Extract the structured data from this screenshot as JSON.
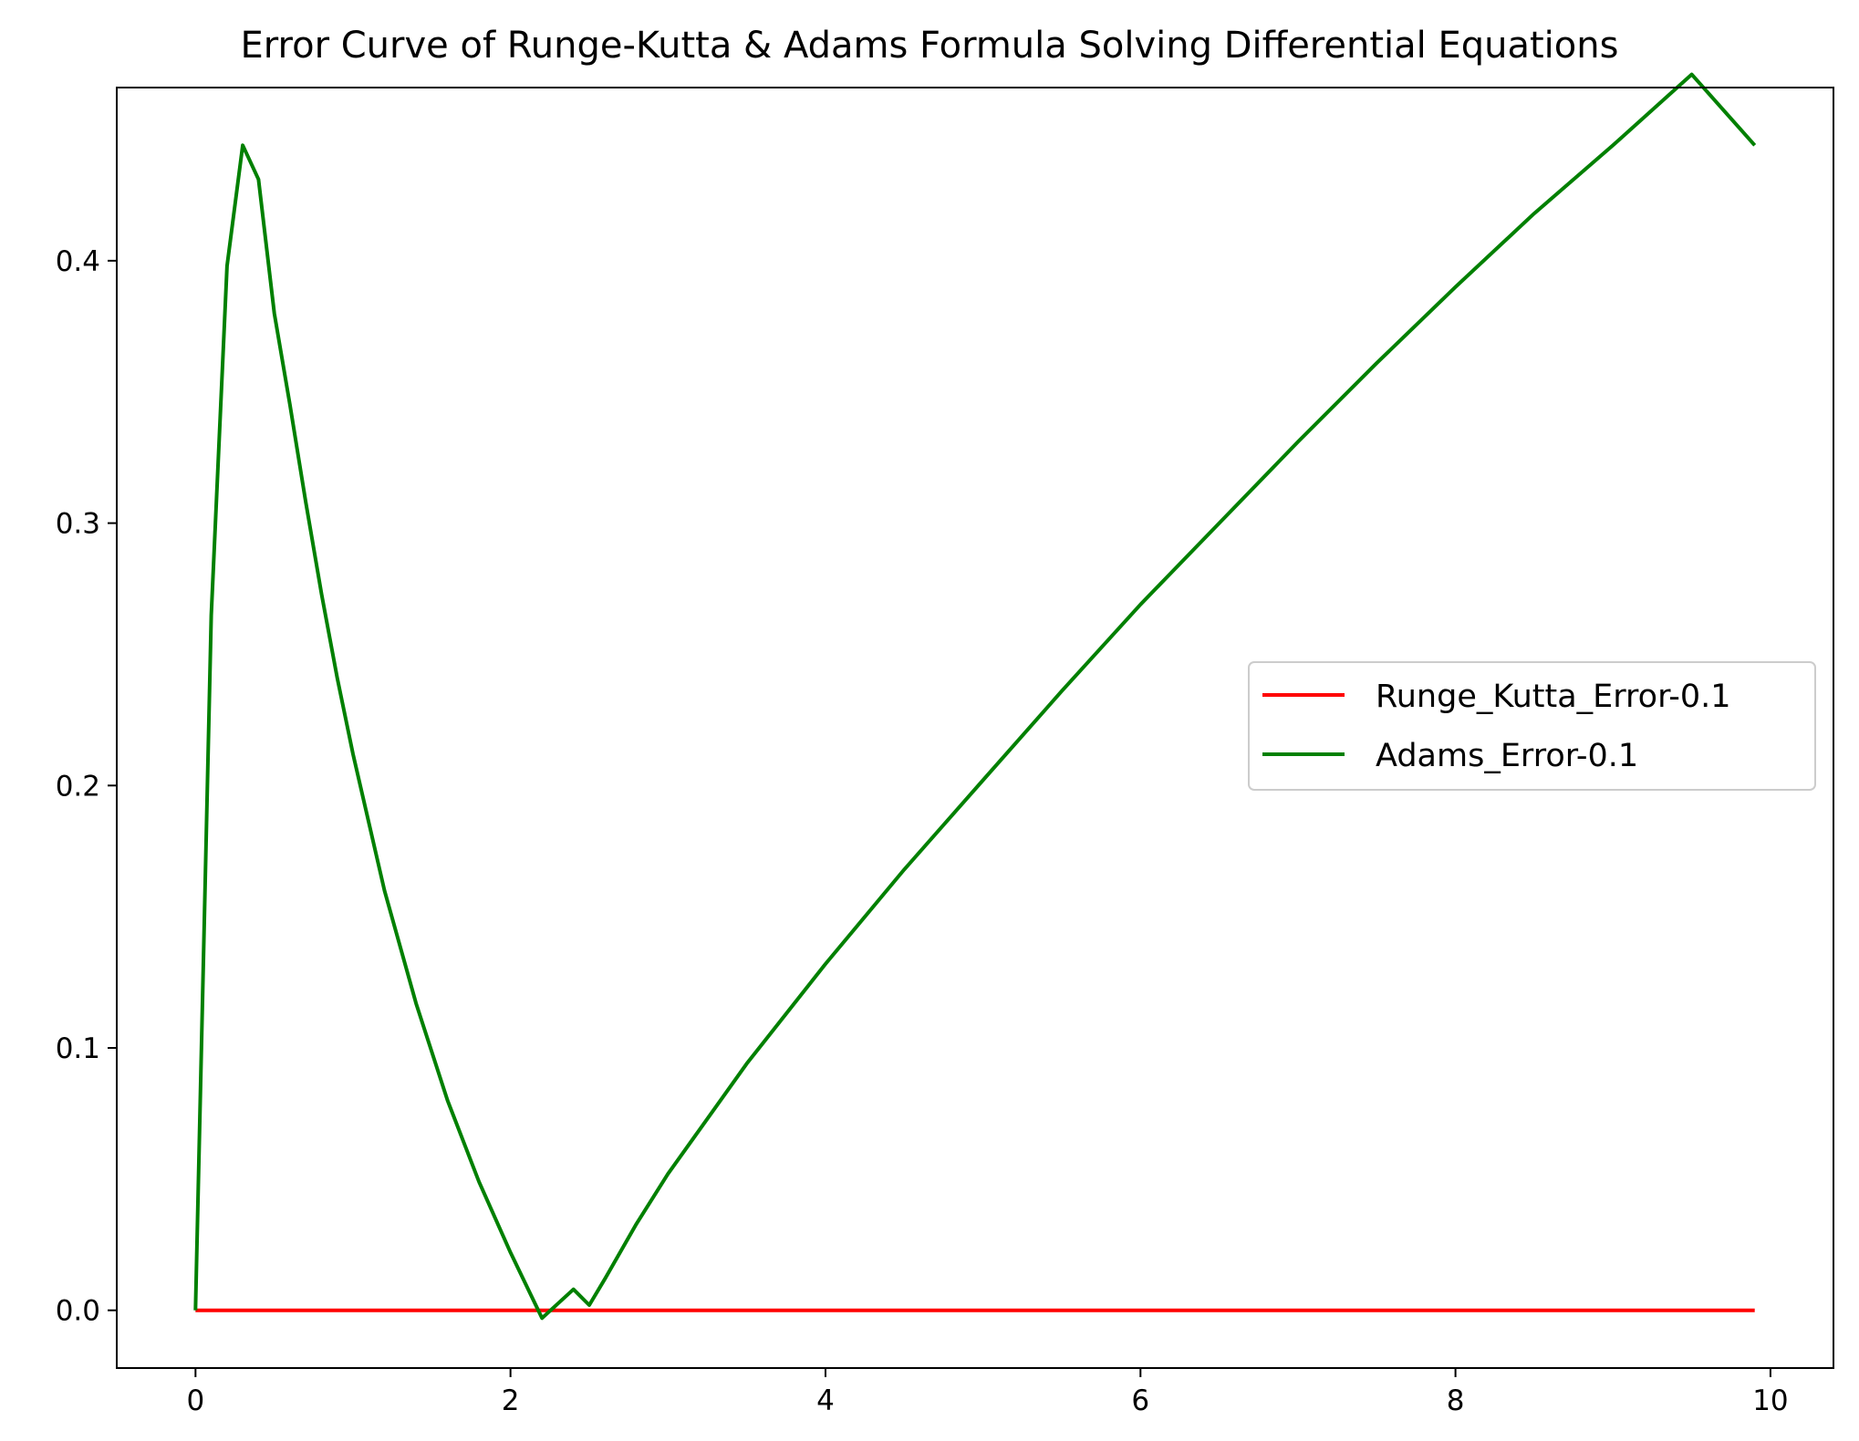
{
  "chart_data": {
    "type": "line",
    "title": "Error Curve of Runge-Kutta & Adams Formula Solving Differential Equations",
    "xlabel": "",
    "ylabel": "",
    "xlim": [
      -0.5,
      10.4
    ],
    "ylim": [
      -0.022,
      0.466
    ],
    "xticks": [
      0,
      2,
      4,
      6,
      8,
      10
    ],
    "yticks": [
      0.0,
      0.1,
      0.2,
      0.3,
      0.4
    ],
    "xtick_labels": [
      "0",
      "2",
      "4",
      "6",
      "8",
      "10"
    ],
    "ytick_labels": [
      "0.0",
      "0.1",
      "0.2",
      "0.3",
      "0.4"
    ],
    "grid": false,
    "legend_position": "center-right",
    "series": [
      {
        "name": "Runge_Kutta_Error-0.1",
        "color": "#ff0000",
        "x": [
          0.0,
          9.9
        ],
        "y": [
          0.0,
          0.0
        ]
      },
      {
        "name": "Adams_Error-0.1",
        "color": "#008000",
        "x": [
          0.0,
          0.1,
          0.2,
          0.3,
          0.4,
          0.5,
          0.6,
          0.7,
          0.8,
          0.9,
          1.0,
          1.2,
          1.4,
          1.6,
          1.8,
          2.0,
          2.2,
          2.4,
          2.5,
          2.6,
          2.8,
          3.0,
          3.5,
          4.0,
          4.5,
          5.0,
          5.5,
          6.0,
          6.5,
          7.0,
          7.5,
          8.0,
          8.5,
          9.0,
          9.5,
          9.9
        ],
        "y": [
          0.0,
          0.265,
          0.398,
          0.444,
          0.431,
          0.38,
          0.345,
          0.308,
          0.273,
          0.241,
          0.212,
          0.16,
          0.117,
          0.08,
          0.049,
          0.022,
          -0.003,
          0.008,
          0.002,
          0.012,
          0.033,
          0.052,
          0.094,
          0.132,
          0.168,
          0.202,
          0.236,
          0.269,
          0.3,
          0.331,
          0.361,
          0.39,
          0.418,
          0.444,
          0.471,
          0.444
        ]
      }
    ]
  }
}
